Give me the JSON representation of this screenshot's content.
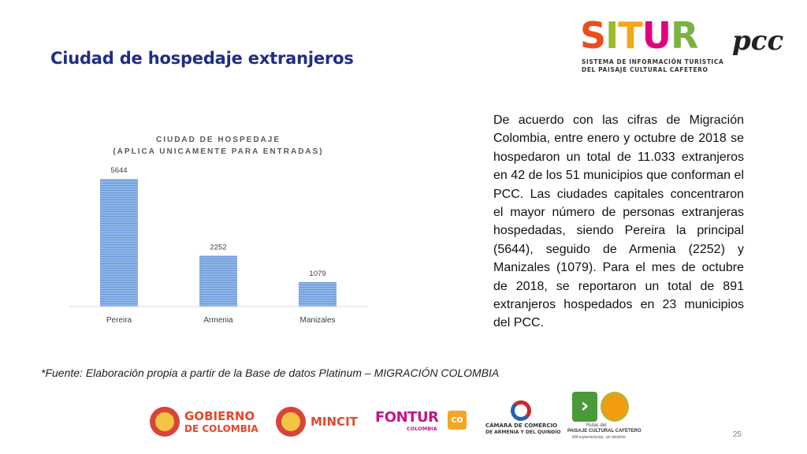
{
  "slide": {
    "title": "Ciudad de hospedaje extranjeros",
    "page_number": "25"
  },
  "logo_situr": {
    "word": [
      "S",
      "I",
      "T",
      "U",
      "R"
    ],
    "word_colors": [
      "#e94e1b",
      "#9bbb2a",
      "#f2a81d",
      "#e4007c",
      "#7bb342"
    ],
    "suffix": "pcc",
    "subtitle_line1": "SISTEMA DE INFORMACIÓN TURÍSTICA",
    "subtitle_line2": "DEL PAISAJE CULTURAL CAFETERO"
  },
  "chart_data": {
    "type": "bar",
    "title_line1": "CIUDAD DE HOSPEDAJE",
    "title_line2": "(APLICA UNICAMENTE PARA ENTRADAS)",
    "categories": [
      "Pereira",
      "Armenia",
      "Manizales"
    ],
    "values": [
      5644,
      2252,
      1079
    ],
    "data_labels": [
      "5644",
      "2252",
      "1079"
    ],
    "bar_color": "#7ba7e0",
    "ylim": [
      0,
      5644
    ],
    "grid": false,
    "legend": "none"
  },
  "paragraph": "De acuerdo con las cifras de Migración Colombia, entre enero y octubre de 2018 se hospedaron un total de 11.033 extranjeros en 42 de los 51 municipios que conforman el PCC. Las ciudades capitales concentraron el mayor número de personas extranjeras hospedadas, siendo Pereira la principal (5644), seguido de Armenia (2252) y Manizales (1079). Para el mes de octubre de 2018, se reportaron un total de 891 extranjeros hospedados en 23 municipios del PCC.",
  "source_note": "*Fuente: Elaboración propia a partir de la Base de datos Platinum – MIGRACIÓN COLOMBIA",
  "footer_logos": {
    "gobierno_line1": "GOBIERNO",
    "gobierno_line2": "DE COLOMBIA",
    "mincit": "MINCIT",
    "fontur": "FONTUR",
    "fontur_sub": "COLOMBIA",
    "fontur_badge": "co",
    "camara_line1": "CÁMARA DE COMERCIO",
    "camara_line2": "DE ARMENIA Y DEL QUINDÍO",
    "rutas_line1": "Rutas del",
    "rutas_line2": "PAISAJE CULTURAL CAFETERO",
    "rutas_line3": "Mil experiencias, un destino"
  }
}
